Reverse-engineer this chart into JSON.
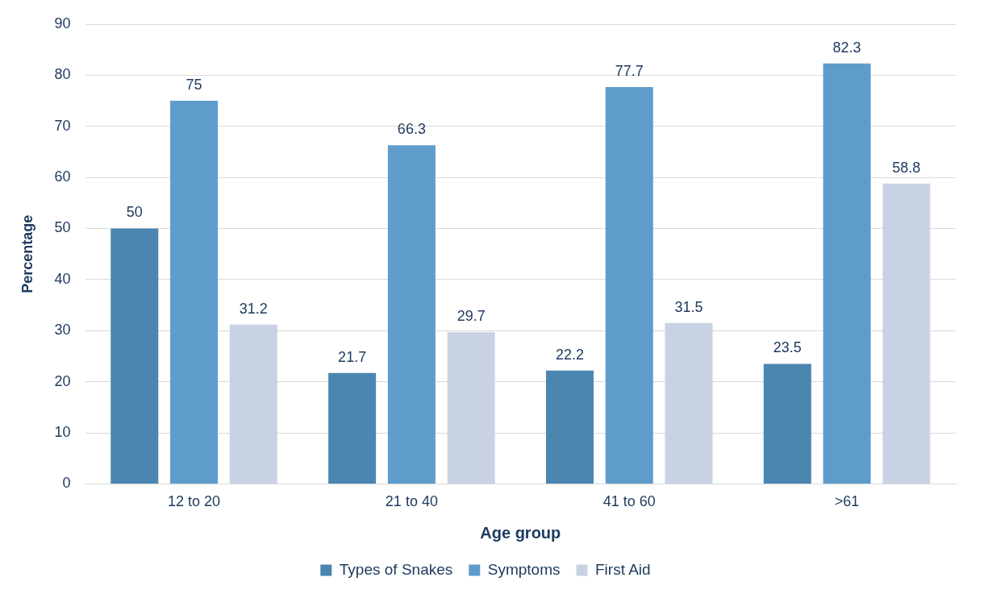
{
  "chart_data": {
    "type": "bar",
    "xlabel": "Age group",
    "ylabel": "Percentage",
    "categories": [
      "12 to 20",
      "21 to 40",
      "41 to 60",
      ">61"
    ],
    "series": [
      {
        "name": "Types of Snakes",
        "color": "#4a86b0",
        "values": [
          50,
          21.7,
          22.2,
          23.5
        ]
      },
      {
        "name": "Symptoms",
        "color": "#5e9ccc",
        "values": [
          75,
          66.3,
          77.7,
          82.3
        ]
      },
      {
        "name": "First Aid",
        "color": "#c8d2e2",
        "values": [
          31.2,
          29.7,
          31.5,
          58.8
        ]
      }
    ],
    "ylim": [
      0,
      90
    ],
    "yticks": [
      0,
      10,
      20,
      30,
      40,
      50,
      60,
      70,
      80,
      90
    ],
    "grid": "y",
    "legend": "bottom",
    "data_labels": true
  }
}
